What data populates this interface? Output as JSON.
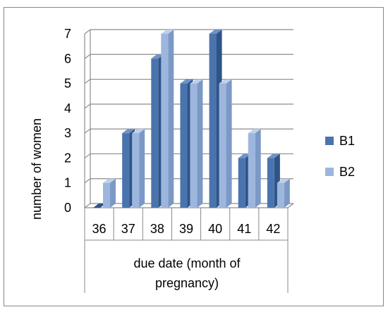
{
  "chart_data": {
    "type": "bar",
    "style": "3d-clustered-column",
    "categories": [
      "36",
      "37",
      "38",
      "39",
      "40",
      "41",
      "42"
    ],
    "series": [
      {
        "name": "B1",
        "values": [
          0,
          3,
          6,
          5,
          7,
          2,
          2
        ]
      },
      {
        "name": "B2",
        "values": [
          1,
          3,
          7,
          5,
          5,
          3,
          1
        ]
      }
    ],
    "ylabel": "number of women",
    "xlabel": "due date (month of pregnancy)",
    "ylim": [
      0,
      7
    ],
    "yticks": [
      "0",
      "1",
      "2",
      "3",
      "4",
      "5",
      "6",
      "7"
    ],
    "grid": true,
    "legend_position": "right",
    "colors": {
      "B1_front": "#4a74ad",
      "B1_side": "#2e5487",
      "B1_top": "#6d93c8",
      "B2_front": "#9db6dd",
      "B2_side": "#7b98c6",
      "B2_top": "#bdd0ec",
      "grid": "#8c8c8c",
      "frame": "#888888"
    }
  }
}
